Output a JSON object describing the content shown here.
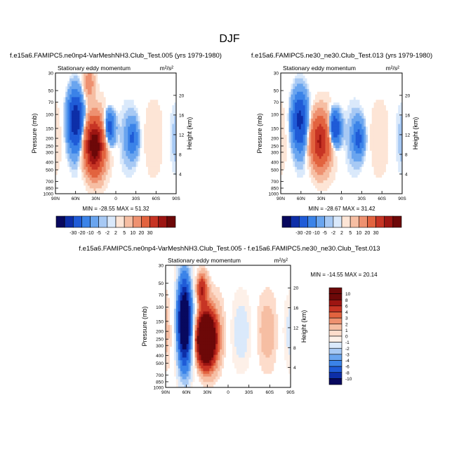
{
  "chart_data": {
    "type": "heatmap",
    "title": "DJF",
    "panels": [
      {
        "id": "top-left",
        "case_title": "f.e15a6.FAMIPC5.ne0np4-VarMeshNH3.Club_Test.005 (yrs 1979-1980)",
        "subtitle": "Stationary eddy momentum",
        "units": "m²/s²",
        "ylabel": "Pressure (mb)",
        "ylabel_right": "Height (km)",
        "x_ticks": [
          "90N",
          "60N",
          "30N",
          "0",
          "30S",
          "60S",
          "90S"
        ],
        "y_ticks": [
          "30",
          "50",
          "70",
          "100",
          "150",
          "200",
          "250",
          "300",
          "400",
          "500",
          "700",
          "850",
          "1000"
        ],
        "height_ticks": [
          "4",
          "8",
          "12",
          "16",
          "20"
        ],
        "min": -28.55,
        "max": 51.32,
        "stats_text": "MIN = -28.55   MAX = 51.32",
        "features": [
          {
            "label": "negative core",
            "lat": 60,
            "p": 120,
            "value": -28
          },
          {
            "label": "positive core",
            "lat": 32,
            "p": 250,
            "value": 51
          },
          {
            "label": "negative core",
            "lat": 10,
            "p": 150,
            "value": -15
          },
          {
            "label": "negative core",
            "lat": -25,
            "p": 200,
            "value": -10
          },
          {
            "label": "positive core",
            "lat": 40,
            "p": 40,
            "value": 8
          }
        ]
      },
      {
        "id": "top-right",
        "case_title": "f.e15a6.FAMIPC5.ne30_ne30.Club_Test.013 (yrs 1979-1980)",
        "subtitle": "Stationary eddy momentum",
        "units": "m²/s²",
        "ylabel": "Pressure (mb)",
        "ylabel_right": "Height (km)",
        "x_ticks": [
          "90N",
          "60N",
          "30N",
          "0",
          "30S",
          "60S",
          "90S"
        ],
        "y_ticks": [
          "30",
          "50",
          "70",
          "100",
          "150",
          "200",
          "250",
          "300",
          "400",
          "500",
          "700",
          "850",
          "1000"
        ],
        "height_ticks": [
          "4",
          "8",
          "12",
          "16",
          "20"
        ],
        "min": -28.67,
        "max": 31.42,
        "stats_text": "MIN = -28.67   MAX = 31.42",
        "features": [
          {
            "label": "negative core",
            "lat": 62,
            "p": 120,
            "value": -22
          },
          {
            "label": "positive core",
            "lat": 32,
            "p": 220,
            "value": 31
          },
          {
            "label": "negative core",
            "lat": 10,
            "p": 150,
            "value": -20
          },
          {
            "label": "negative core",
            "lat": -25,
            "p": 200,
            "value": -12
          }
        ]
      },
      {
        "id": "bottom-diff",
        "case_title": "f.e15a6.FAMIPC5.ne0np4-VarMeshNH3.Club_Test.005 - f.e15a6.FAMIPC5.ne30_ne30.Club_Test.013",
        "subtitle": "Stationary eddy momentum",
        "units": "m²/s²",
        "ylabel": "Pressure (mb)",
        "ylabel_right": "Height (km)",
        "x_ticks": [
          "90N",
          "60N",
          "30N",
          "0",
          "30S",
          "60S",
          "90S"
        ],
        "y_ticks": [
          "30",
          "50",
          "70",
          "100",
          "150",
          "200",
          "250",
          "300",
          "400",
          "500",
          "700",
          "850",
          "1000"
        ],
        "height_ticks": [
          "4",
          "8",
          "12",
          "16",
          "20"
        ],
        "min": -14.55,
        "max": 20.14,
        "stats_text": "MIN = -14.55   MAX = 20.14",
        "features": [
          {
            "label": "negative band",
            "lat": 63,
            "p": 150,
            "value": -14
          },
          {
            "label": "positive core",
            "lat": 32,
            "p": 250,
            "value": 20
          },
          {
            "label": "positive upper",
            "lat": 38,
            "p": 60,
            "value": 6
          }
        ]
      }
    ],
    "colorbar_top": {
      "labels": [
        "-30",
        "-20",
        "-10",
        "-5",
        "-2",
        "2",
        "5",
        "10",
        "20",
        "30"
      ],
      "colors": [
        "#08085e",
        "#0d2ea8",
        "#1f5bd7",
        "#3b83e8",
        "#6aa5ef",
        "#a7c9f4",
        "#dae9fb",
        "#fde5d6",
        "#f6bea3",
        "#ee9170",
        "#e2633f",
        "#c73424",
        "#9d1512",
        "#6d0808"
      ]
    },
    "colorbar_diff": {
      "labels": [
        "10",
        "8",
        "6",
        "4",
        "3",
        "2",
        "1",
        "0",
        "-1",
        "-2",
        "-3",
        "-4",
        "-6",
        "-8",
        "-10"
      ],
      "colors": [
        "#6d0808",
        "#9d1512",
        "#c73424",
        "#e2633f",
        "#ee9170",
        "#f6bea3",
        "#fddccb",
        "#fdf0e8",
        "#dae9fb",
        "#a7c9f4",
        "#6aa5ef",
        "#3b83e8",
        "#1f5bd7",
        "#0d2ea8",
        "#08085e"
      ]
    }
  }
}
